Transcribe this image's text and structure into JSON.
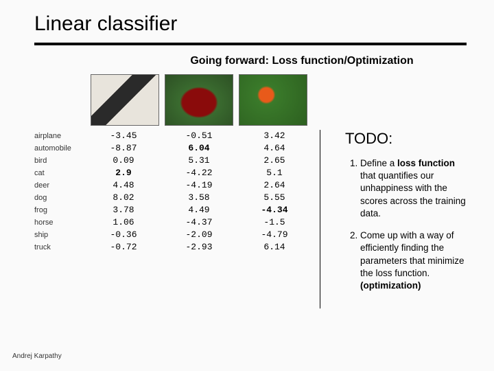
{
  "title": "Linear classifier",
  "subtitle": "Going forward: Loss function/Optimization",
  "labels": [
    "airplane",
    "automobile",
    "bird",
    "cat",
    "deer",
    "dog",
    "frog",
    "horse",
    "ship",
    "truck"
  ],
  "columns": [
    {
      "image": "cat",
      "values": [
        "-3.45",
        "-8.87",
        "0.09",
        "2.9",
        "4.48",
        "8.02",
        "3.78",
        "1.06",
        "-0.36",
        "-0.72"
      ],
      "highlight_index": 3,
      "highlight_color": "#000000"
    },
    {
      "image": "car",
      "values": [
        "-0.51",
        "6.04",
        "5.31",
        "-4.22",
        "-4.19",
        "3.58",
        "4.49",
        "-4.37",
        "-2.09",
        "-2.93"
      ],
      "highlight_index": 1,
      "highlight_color": "#000000"
    },
    {
      "image": "frog",
      "values": [
        "3.42",
        "4.64",
        "2.65",
        "5.1",
        "2.64",
        "5.55",
        "-4.34",
        "-1.5",
        "-4.79",
        "6.14"
      ],
      "highlight_index": 6,
      "highlight_color": "#000000"
    }
  ],
  "todo": {
    "heading": "TODO:",
    "items": [
      {
        "pre": "Define a ",
        "bold": "loss function",
        "post": " that quantifies our unhappiness with the scores across the training data."
      },
      {
        "pre": "Come up with a way of efficiently finding the parameters that minimize the loss function. ",
        "bold": "(optimization)",
        "post": ""
      }
    ]
  },
  "footer": "Andrej Karpathy",
  "styling": {
    "background": "#fafafa",
    "title_fontsize": 30,
    "title_underline_width": 4,
    "mono_font": "Courier New",
    "label_color": "#333333"
  }
}
